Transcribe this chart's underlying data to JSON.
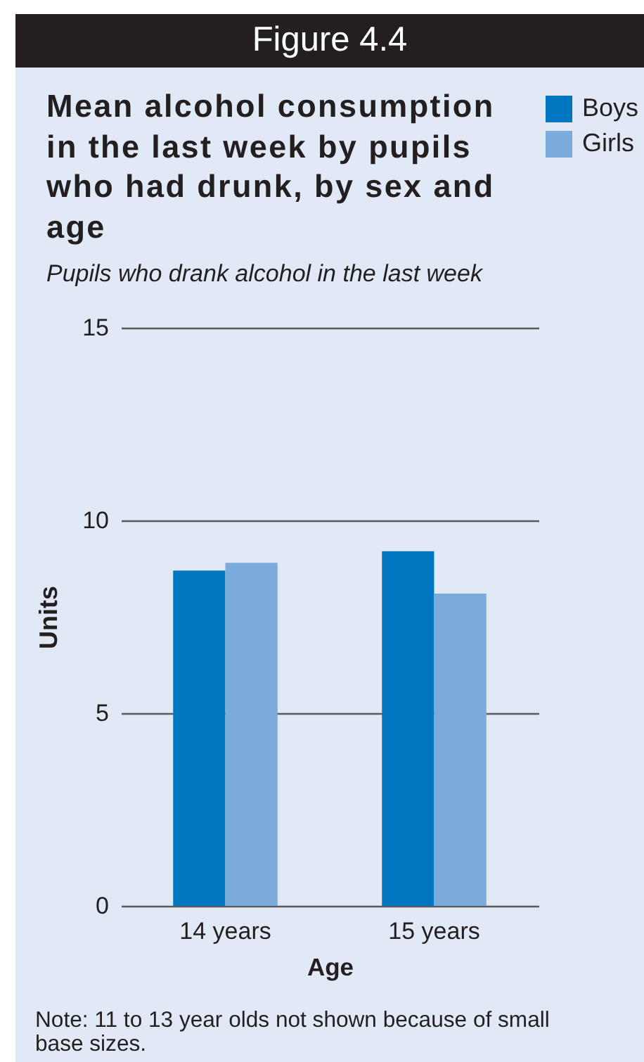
{
  "chart_data": {
    "type": "bar",
    "title": "Mean alcohol consumption in the last week by pupils who had drunk, by sex and age",
    "subtitle": "Pupils who drank alcohol in the last week",
    "xlabel": "Age",
    "ylabel": "Units",
    "categories": [
      "14 years",
      "15 years"
    ],
    "series": [
      {
        "name": "Boys",
        "color": "#0077c0",
        "values": [
          8.7,
          9.2
        ]
      },
      {
        "name": "Girls",
        "color": "#7aabdb",
        "values": [
          8.9,
          8.1
        ]
      }
    ],
    "ylim": [
      0,
      15
    ],
    "yticks": [
      0,
      5,
      10,
      15
    ],
    "grid": "y",
    "legend": "top right",
    "annotations": [
      "Figure 4.4",
      "Note: 11 to 13 year olds not shown because of small base sizes."
    ]
  }
}
